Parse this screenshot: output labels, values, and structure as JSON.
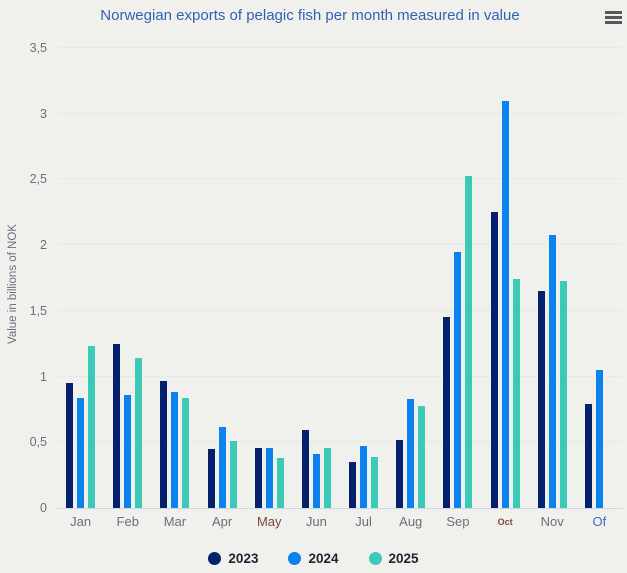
{
  "header": {
    "title": "Norwegian exports of pelagic fish per month measured in value",
    "menu_icon": "hamburger-menu-icon"
  },
  "colors": {
    "background": "#f0f1ed",
    "title": "#3261b4",
    "axis_label": "#68707a",
    "label_maroon": "#7e4339",
    "label_blue": "#3e6cc2",
    "axis_line": "#ccd4e8",
    "grid_line": "#e7e9e4",
    "legend_text": "#1e2430",
    "menu_icon": "#56595c"
  },
  "chart_data": {
    "type": "bar",
    "title": "Norwegian exports of pelagic fish per month measured in value",
    "xlabel": "",
    "ylabel": "Value in billions of NOK",
    "ylim": [
      0,
      3.5
    ],
    "ytick_labels": [
      "0",
      "0,5",
      "1",
      "1,5",
      "2",
      "2,5",
      "3",
      "3,5"
    ],
    "grid": true,
    "legend_position": "bottom",
    "categories": [
      "Jan",
      "Feb",
      "Mar",
      "Apr",
      "May",
      "Jun",
      "Jul",
      "Aug",
      "Sep",
      "Oct",
      "Nov",
      "Of"
    ],
    "category_label_styles": [
      "normal",
      "normal",
      "normal",
      "normal",
      "maroon",
      "normal",
      "normal",
      "normal",
      "normal",
      "maroon-small",
      "normal",
      "blue"
    ],
    "series": [
      {
        "name": "2023",
        "color": "#05216e",
        "values": [
          0.95,
          1.25,
          0.97,
          0.45,
          0.46,
          0.59,
          0.35,
          0.52,
          1.45,
          2.25,
          1.65,
          0.79
        ]
      },
      {
        "name": "2024",
        "color": "#0b82ee",
        "values": [
          0.84,
          0.86,
          0.88,
          0.62,
          0.46,
          0.41,
          0.47,
          0.83,
          1.95,
          3.1,
          2.08,
          1.05
        ]
      },
      {
        "name": "2025",
        "color": "#3cc9b7",
        "values": [
          1.23,
          1.14,
          0.84,
          0.51,
          0.38,
          0.46,
          0.39,
          0.78,
          2.53,
          1.74,
          1.73,
          null
        ]
      }
    ]
  }
}
